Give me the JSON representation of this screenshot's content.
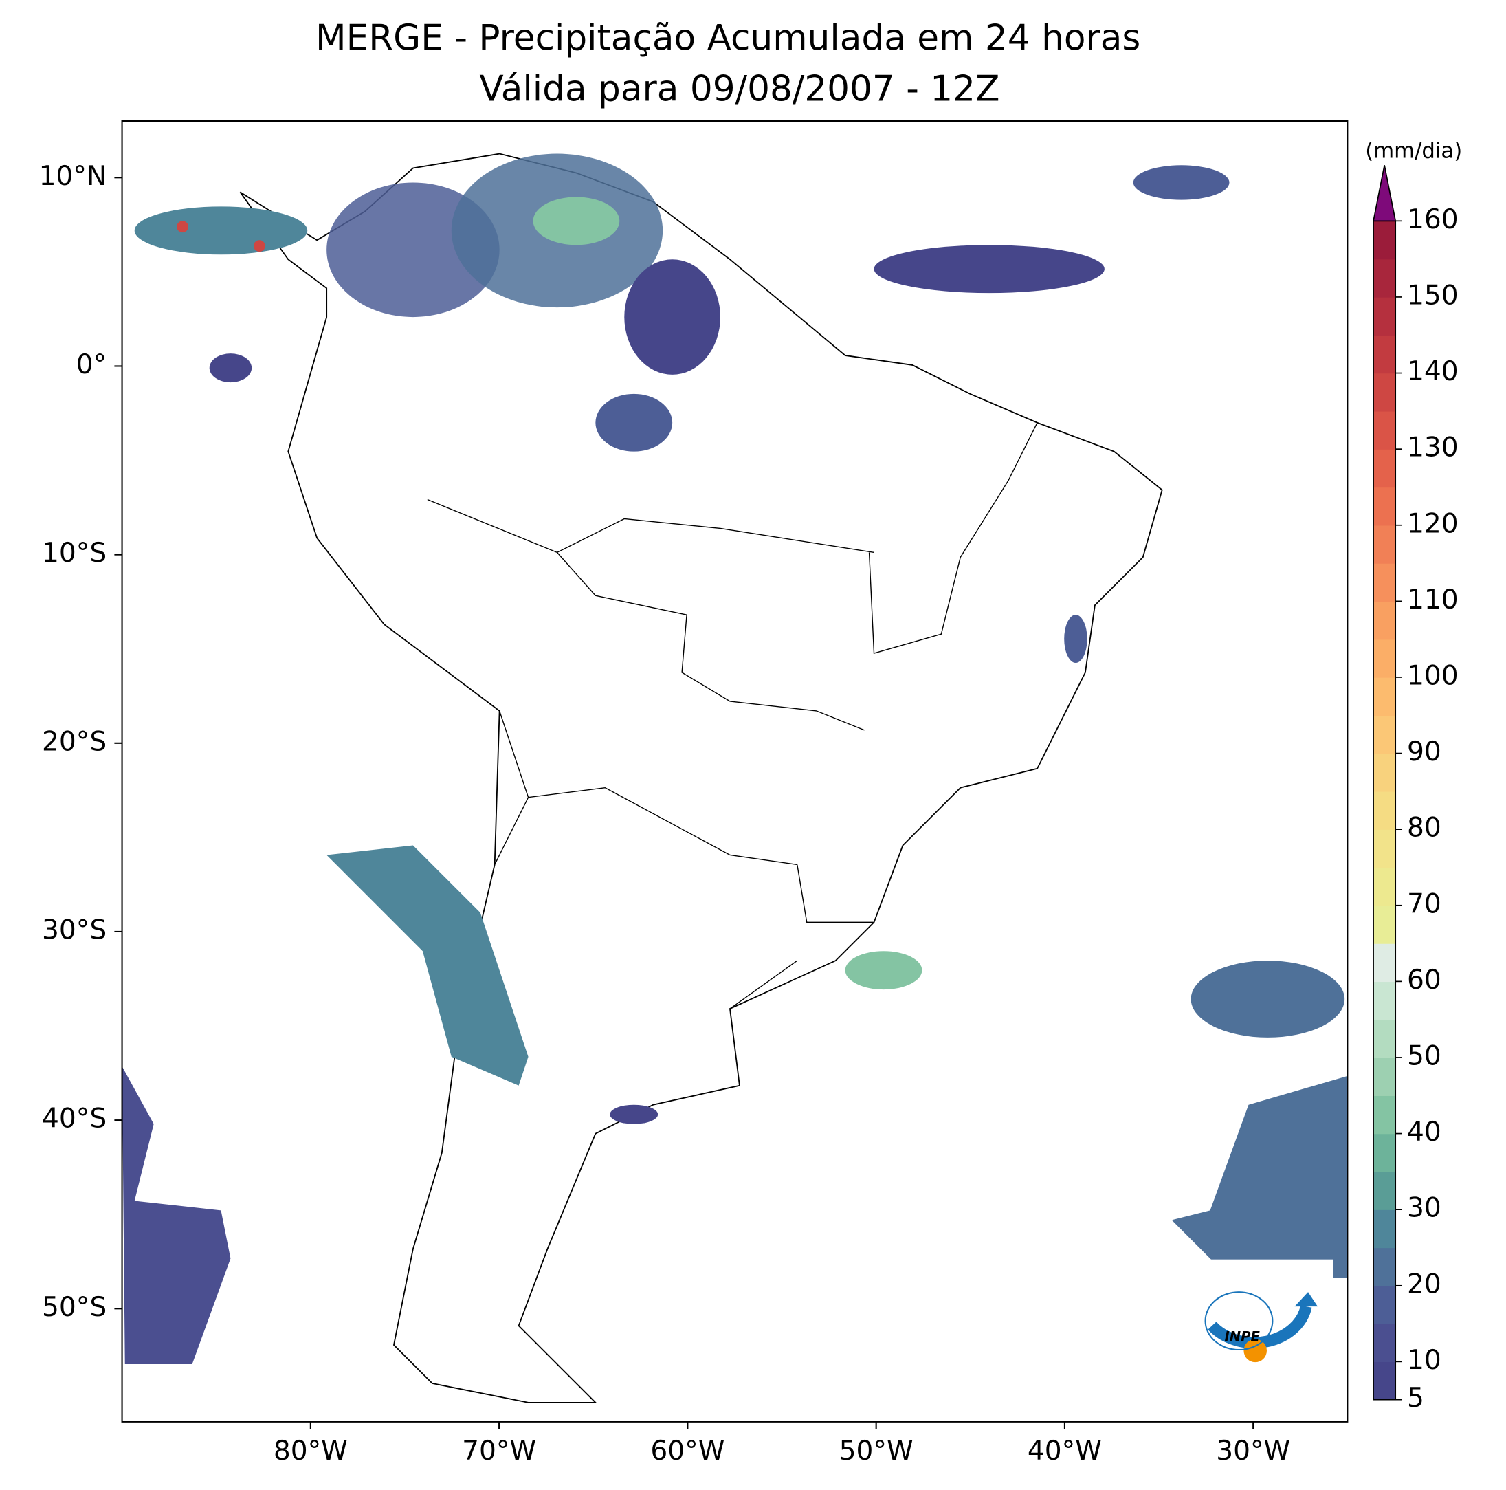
{
  "title": "MERGE - Precipitação Acumulada em 24 horas",
  "subtitle": "Válida para 09/08/2007 - 12Z",
  "map": {
    "xlim": [
      -90,
      -25
    ],
    "ylim": [
      -56,
      13
    ],
    "xticks": [
      {
        "value": -80,
        "label": "80°W"
      },
      {
        "value": -70,
        "label": "70°W"
      },
      {
        "value": -60,
        "label": "60°W"
      },
      {
        "value": -50,
        "label": "50°W"
      },
      {
        "value": -40,
        "label": "40°W"
      },
      {
        "value": -30,
        "label": "30°W"
      }
    ],
    "yticks": [
      {
        "value": 10,
        "label": "10°N"
      },
      {
        "value": 0,
        "label": "0°"
      },
      {
        "value": -10,
        "label": "10°S"
      },
      {
        "value": -20,
        "label": "20°S"
      },
      {
        "value": -30,
        "label": "30°S"
      },
      {
        "value": -40,
        "label": "40°S"
      },
      {
        "value": -50,
        "label": "50°S"
      }
    ]
  },
  "colorbar": {
    "label": "(mm/dia)",
    "lim": [
      5,
      160
    ],
    "ticks": [
      5,
      10,
      20,
      30,
      40,
      50,
      60,
      70,
      80,
      90,
      100,
      110,
      120,
      130,
      140,
      150,
      160
    ],
    "colors": [
      "#46468a",
      "#4b4f90",
      "#4d5e96",
      "#4f7199",
      "#4f869a",
      "#5a9d96",
      "#6db39a",
      "#84c4a3",
      "#9dd0b1",
      "#b3dcc0",
      "#c9e6d2",
      "#dfece4",
      "#e8ed96",
      "#ede98f",
      "#f2e38a",
      "#f5dc83",
      "#f8d27d",
      "#fbc776",
      "#fcbb6e",
      "#fbae67",
      "#f9a061",
      "#f6905c",
      "#f18056",
      "#ec7150",
      "#e4624b",
      "#da5447",
      "#ce4743",
      "#c23b40",
      "#b5303e",
      "#a8263c",
      "#9b1c3a"
    ],
    "extend_color": "#7e0a7a"
  },
  "logo_text": "INPE"
}
